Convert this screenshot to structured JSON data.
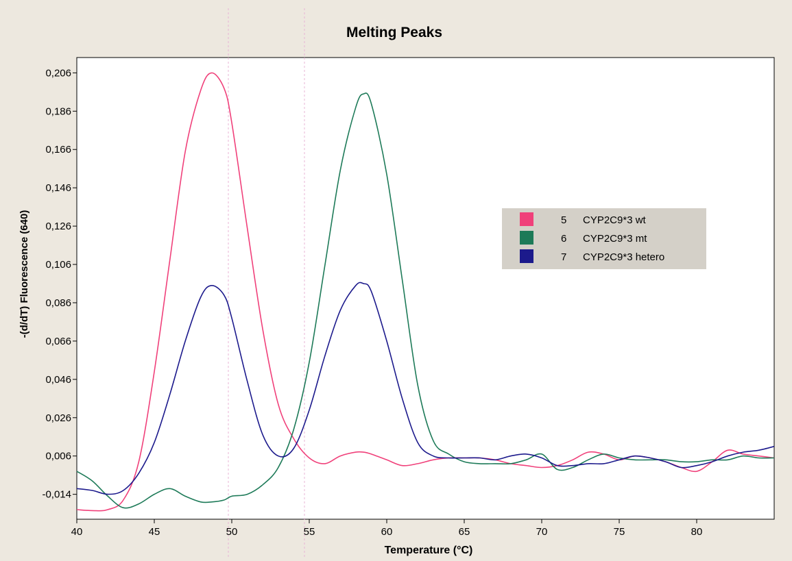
{
  "chart_data": {
    "type": "line",
    "title": "Melting Peaks",
    "xlabel": "Temperature (°C)",
    "ylabel": "-(d/dT) Fluorescence (640)",
    "xlim": [
      40,
      85
    ],
    "ylim": [
      -0.027,
      0.214
    ],
    "x_ticks": [
      40,
      45,
      50,
      55,
      60,
      65,
      70,
      75,
      80
    ],
    "x_tick_labels": [
      "40",
      "45",
      "50",
      "55",
      "60",
      "65",
      "70",
      "75",
      "80"
    ],
    "y_ticks": [
      -0.014,
      0.006,
      0.026,
      0.046,
      0.066,
      0.086,
      0.106,
      0.126,
      0.146,
      0.166,
      0.186,
      0.206
    ],
    "y_tick_labels": [
      "-0,014",
      "0,006",
      "0,026",
      "0,046",
      "0,066",
      "0,086",
      "0,106",
      "0,126",
      "0,146",
      "0,166",
      "0,186",
      "0,206"
    ],
    "grid": false,
    "legend_position": "right",
    "x": [
      40,
      41,
      42,
      43,
      44,
      45,
      46,
      47,
      48,
      48.7,
      49.5,
      50,
      51,
      52,
      53,
      54,
      55,
      56,
      57,
      58,
      58.5,
      59,
      60,
      61,
      62,
      63,
      64,
      65,
      66,
      67,
      68,
      69,
      70,
      71,
      72,
      73,
      74,
      75,
      76,
      77,
      78,
      79,
      80,
      81,
      82,
      83,
      84,
      85
    ],
    "series": [
      {
        "name": "CYP2C9*3 wt",
        "number": "5",
        "color": "#f0407a",
        "values": [
          -0.022,
          -0.0225,
          -0.022,
          -0.017,
          0.003,
          0.05,
          0.108,
          0.165,
          0.197,
          0.206,
          0.198,
          0.18,
          0.125,
          0.072,
          0.033,
          0.015,
          0.005,
          0.002,
          0.006,
          0.008,
          0.008,
          0.007,
          0.004,
          0.001,
          0.002,
          0.004,
          0.005,
          0.005,
          0.005,
          0.004,
          0.002,
          0.001,
          0.0,
          0.001,
          0.004,
          0.008,
          0.007,
          0.004,
          0.006,
          0.005,
          0.003,
          0.0,
          -0.002,
          0.003,
          0.009,
          0.007,
          0.006,
          0.005
        ]
      },
      {
        "name": "CYP2C9*3 mt",
        "number": "6",
        "color": "#1d7a58",
        "values": [
          -0.002,
          -0.007,
          -0.015,
          -0.021,
          -0.019,
          -0.014,
          -0.011,
          -0.015,
          -0.018,
          -0.018,
          -0.017,
          -0.015,
          -0.014,
          -0.009,
          0.0,
          0.02,
          0.055,
          0.105,
          0.155,
          0.188,
          0.195,
          0.19,
          0.153,
          0.098,
          0.043,
          0.014,
          0.007,
          0.003,
          0.002,
          0.002,
          0.002,
          0.004,
          0.007,
          -0.001,
          0.0,
          0.004,
          0.007,
          0.005,
          0.004,
          0.004,
          0.004,
          0.003,
          0.003,
          0.004,
          0.004,
          0.006,
          0.005,
          0.005
        ]
      },
      {
        "name": "CYP2C9*3 hetero",
        "number": "7",
        "color": "#1c1a8c",
        "values": [
          -0.011,
          -0.012,
          -0.014,
          -0.012,
          -0.003,
          0.013,
          0.038,
          0.066,
          0.089,
          0.095,
          0.09,
          0.078,
          0.045,
          0.017,
          0.006,
          0.01,
          0.03,
          0.058,
          0.082,
          0.095,
          0.096,
          0.092,
          0.066,
          0.036,
          0.013,
          0.006,
          0.005,
          0.005,
          0.005,
          0.004,
          0.006,
          0.007,
          0.005,
          0.001,
          0.001,
          0.002,
          0.002,
          0.004,
          0.006,
          0.005,
          0.003,
          0.0,
          0.001,
          0.003,
          0.006,
          0.008,
          0.009,
          0.011
        ]
      }
    ]
  }
}
